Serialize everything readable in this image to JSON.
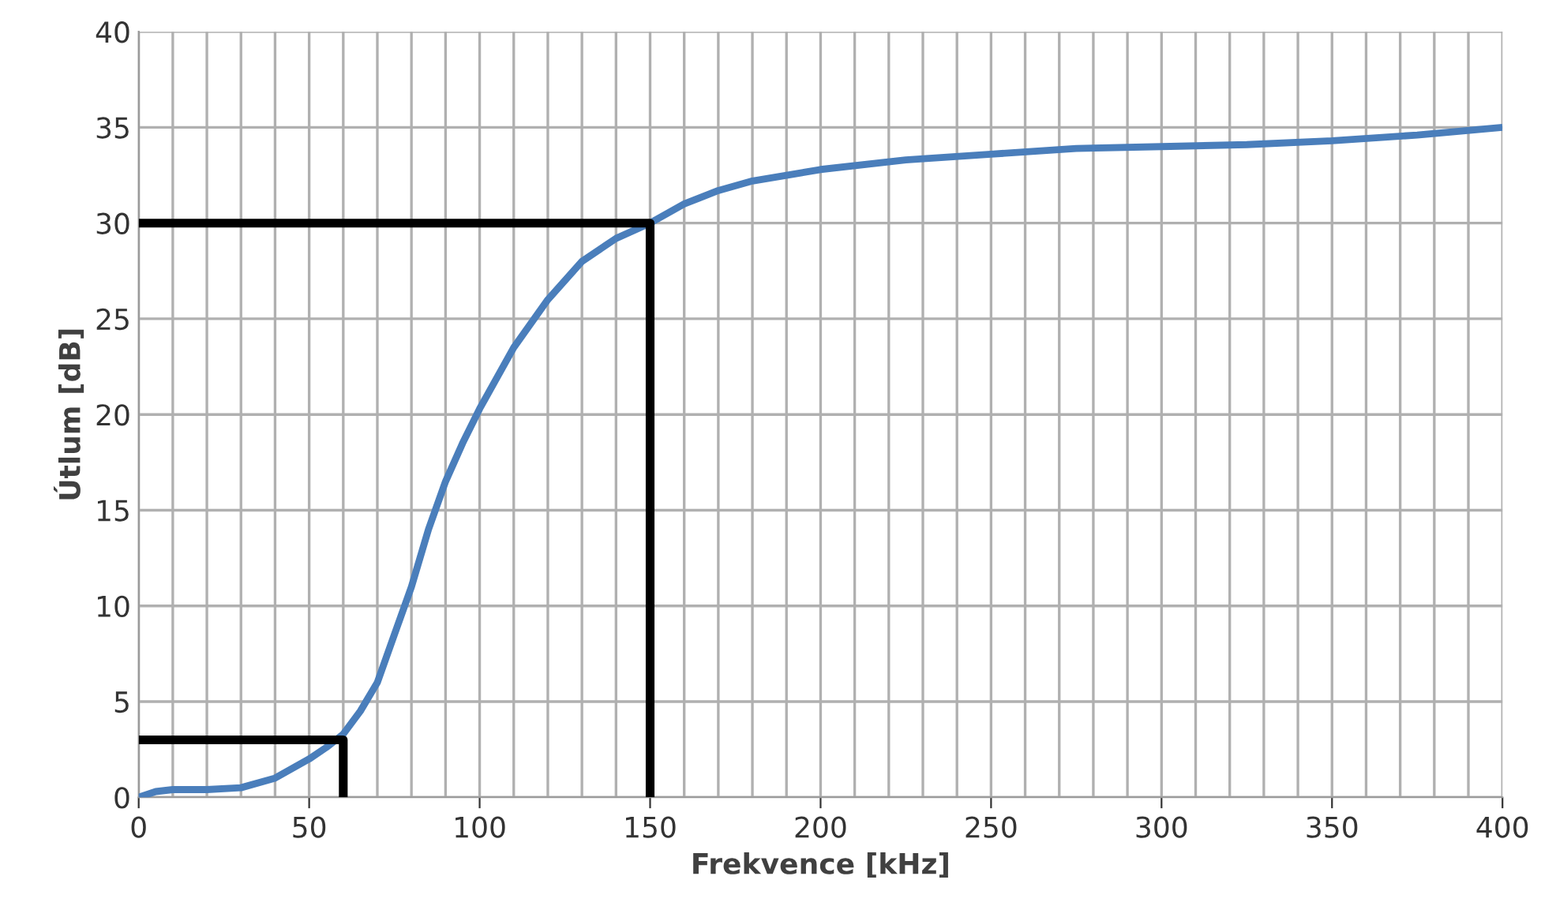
{
  "chart_data": {
    "type": "line",
    "xlabel": "Frekvence [kHz]",
    "ylabel": "Útlum [dB]",
    "xlim": [
      0,
      400
    ],
    "ylim": [
      0,
      40
    ],
    "xticks": [
      0,
      {
        "value": 10,
        "label": null
      },
      {
        "value": 20,
        "label": null
      },
      {
        "value": 30,
        "label": null
      },
      {
        "value": 40,
        "label": null
      },
      50,
      {
        "value": 60,
        "label": null
      },
      {
        "value": 70,
        "label": null
      },
      {
        "value": 80,
        "label": null
      },
      {
        "value": 90,
        "label": null
      },
      100,
      {
        "value": 110,
        "label": null
      },
      {
        "value": 120,
        "label": null
      },
      {
        "value": 130,
        "label": null
      },
      {
        "value": 140,
        "label": null
      },
      150,
      {
        "value": 160,
        "label": null
      },
      {
        "value": 170,
        "label": null
      },
      {
        "value": 180,
        "label": null
      },
      {
        "value": 190,
        "label": null
      },
      200,
      {
        "value": 210,
        "label": null
      },
      {
        "value": 220,
        "label": null
      },
      {
        "value": 230,
        "label": null
      },
      {
        "value": 240,
        "label": null
      },
      250,
      {
        "value": 260,
        "label": null
      },
      {
        "value": 270,
        "label": null
      },
      {
        "value": 280,
        "label": null
      },
      {
        "value": 290,
        "label": null
      },
      300,
      {
        "value": 310,
        "label": null
      },
      {
        "value": 320,
        "label": null
      },
      {
        "value": 330,
        "label": null
      },
      {
        "value": 340,
        "label": null
      },
      350,
      {
        "value": 360,
        "label": null
      },
      {
        "value": 370,
        "label": null
      },
      {
        "value": 380,
        "label": null
      },
      {
        "value": 390,
        "label": null
      },
      400
    ],
    "yticks": [
      0,
      5,
      10,
      15,
      20,
      25,
      30,
      35,
      40
    ],
    "grid": true,
    "marker": "none",
    "line_style": "solid",
    "legend": false,
    "series": [
      {
        "color": "#4a7ebb",
        "x": [
          0,
          5,
          10,
          20,
          30,
          40,
          50,
          55,
          60,
          65,
          70,
          75,
          80,
          85,
          90,
          95,
          100,
          110,
          120,
          130,
          140,
          150,
          160,
          170,
          180,
          200,
          225,
          250,
          275,
          300,
          325,
          350,
          375,
          400
        ],
        "values": [
          0,
          0.3,
          0.4,
          0.4,
          0.5,
          1,
          2,
          2.6,
          3.3,
          4.5,
          6,
          8.5,
          11,
          14,
          16.5,
          18.5,
          20.3,
          23.5,
          26,
          28,
          29.2,
          30,
          31,
          31.7,
          32.2,
          32.8,
          33.3,
          33.6,
          33.9,
          34,
          34.1,
          34.3,
          34.6,
          35
        ]
      },
      {
        "color": "#000000",
        "x": [
          0,
          150,
          150
        ],
        "values": [
          30,
          30,
          0
        ]
      },
      {
        "color": "#000000",
        "x": [
          0,
          60,
          60
        ],
        "values": [
          3,
          3,
          0
        ]
      }
    ]
  }
}
